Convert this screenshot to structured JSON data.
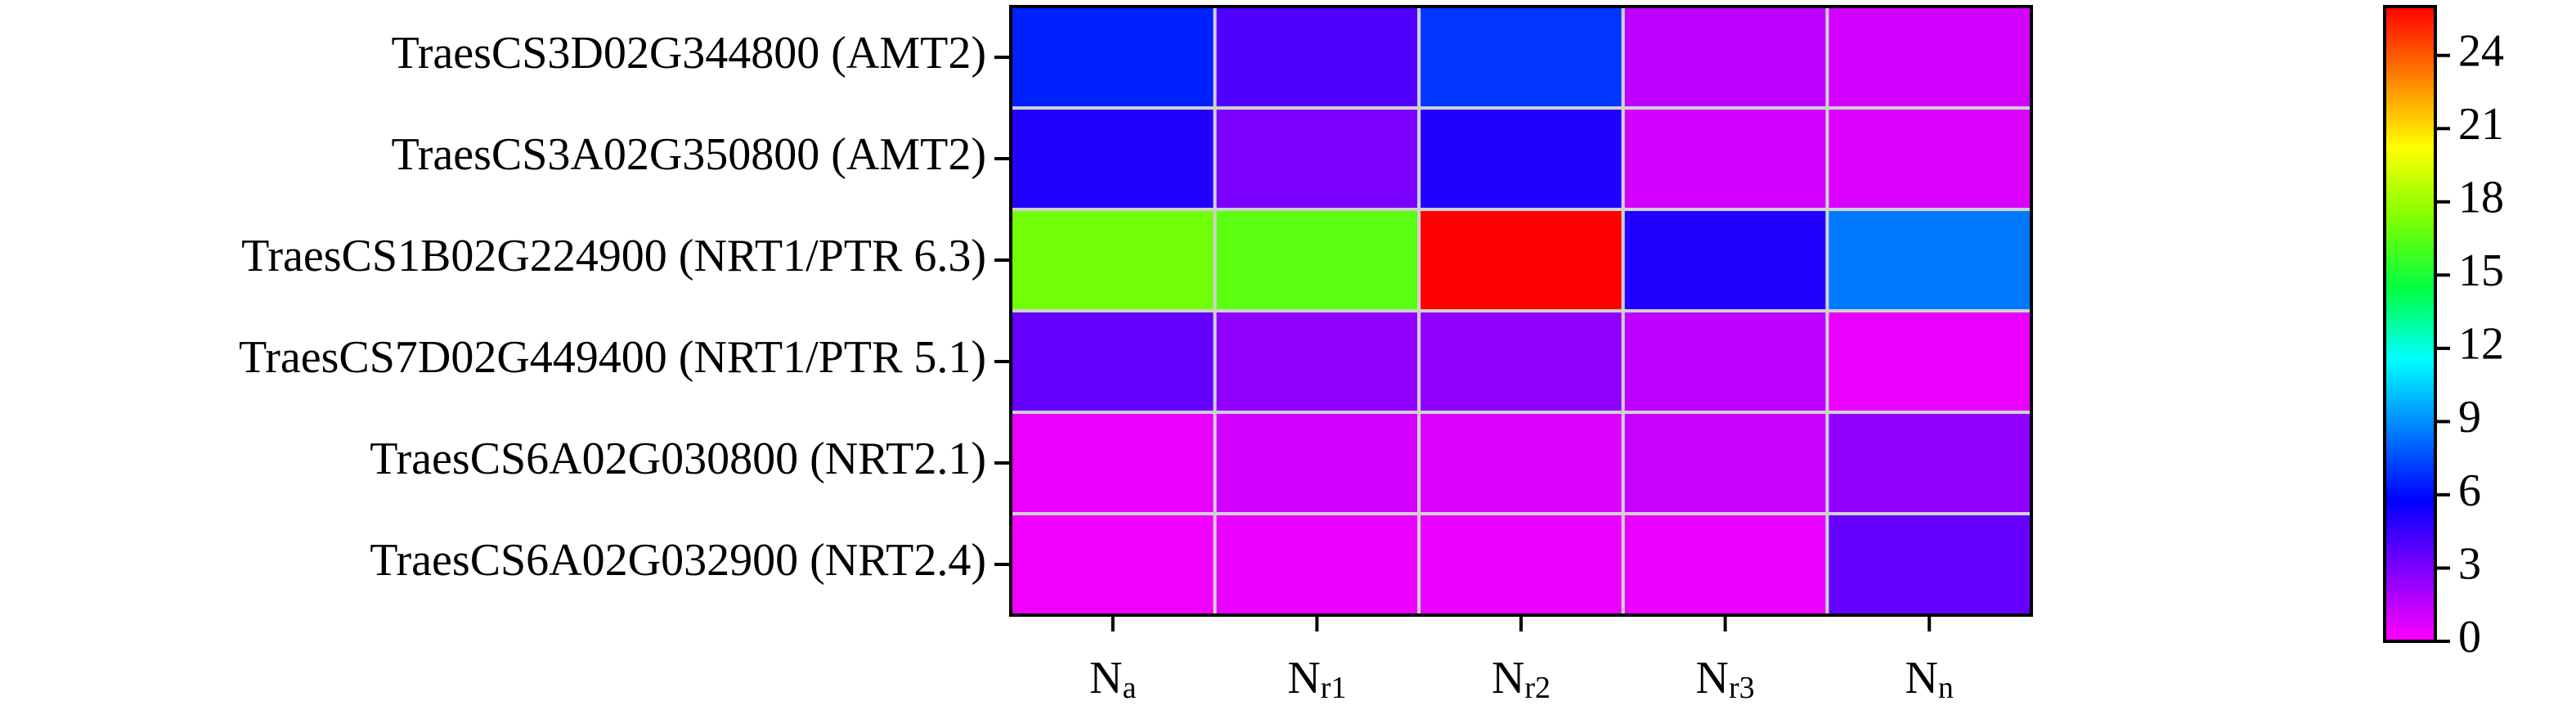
{
  "chart_data": {
    "type": "heatmap",
    "categories": [
      "Na",
      "Nr1",
      "Nr2",
      "Nr3",
      "Nn"
    ],
    "rows": [
      "TraesCS3D02G344800 (AMT2)",
      "TraesCS3A02G350800 (AMT2)",
      "TraesCS1B02G224900 (NRT1/PTR 6.3)",
      "TraesCS7D02G449400 (NRT1/PTR 5.1)",
      "TraesCS6A02G030800 (NRT2.1)",
      "TraesCS6A02G032900 (NRT2.4)"
    ],
    "values": [
      [
        6.5,
        4,
        7,
        1.5,
        1
      ],
      [
        5,
        3,
        5,
        1,
        0.8
      ],
      [
        17,
        16.5,
        26,
        5,
        8.5
      ],
      [
        3.5,
        2.5,
        2.5,
        1.5,
        0.5
      ],
      [
        0.5,
        1,
        0.8,
        1.2,
        2.5
      ],
      [
        0.3,
        0.5,
        0.5,
        0.5,
        3.5
      ]
    ],
    "zlim": [
      0,
      26
    ],
    "zticks": [
      0,
      3,
      6,
      9,
      12,
      15,
      18,
      21,
      24
    ],
    "colors": [
      "#ff00ff",
      "#8000ff",
      "#0000ff",
      "#0080ff",
      "#00ffff",
      "#00ff40",
      "#80ff00",
      "#ffff00",
      "#ff8000",
      "#ff0000"
    ],
    "grid_color": "#d0d0d0"
  }
}
